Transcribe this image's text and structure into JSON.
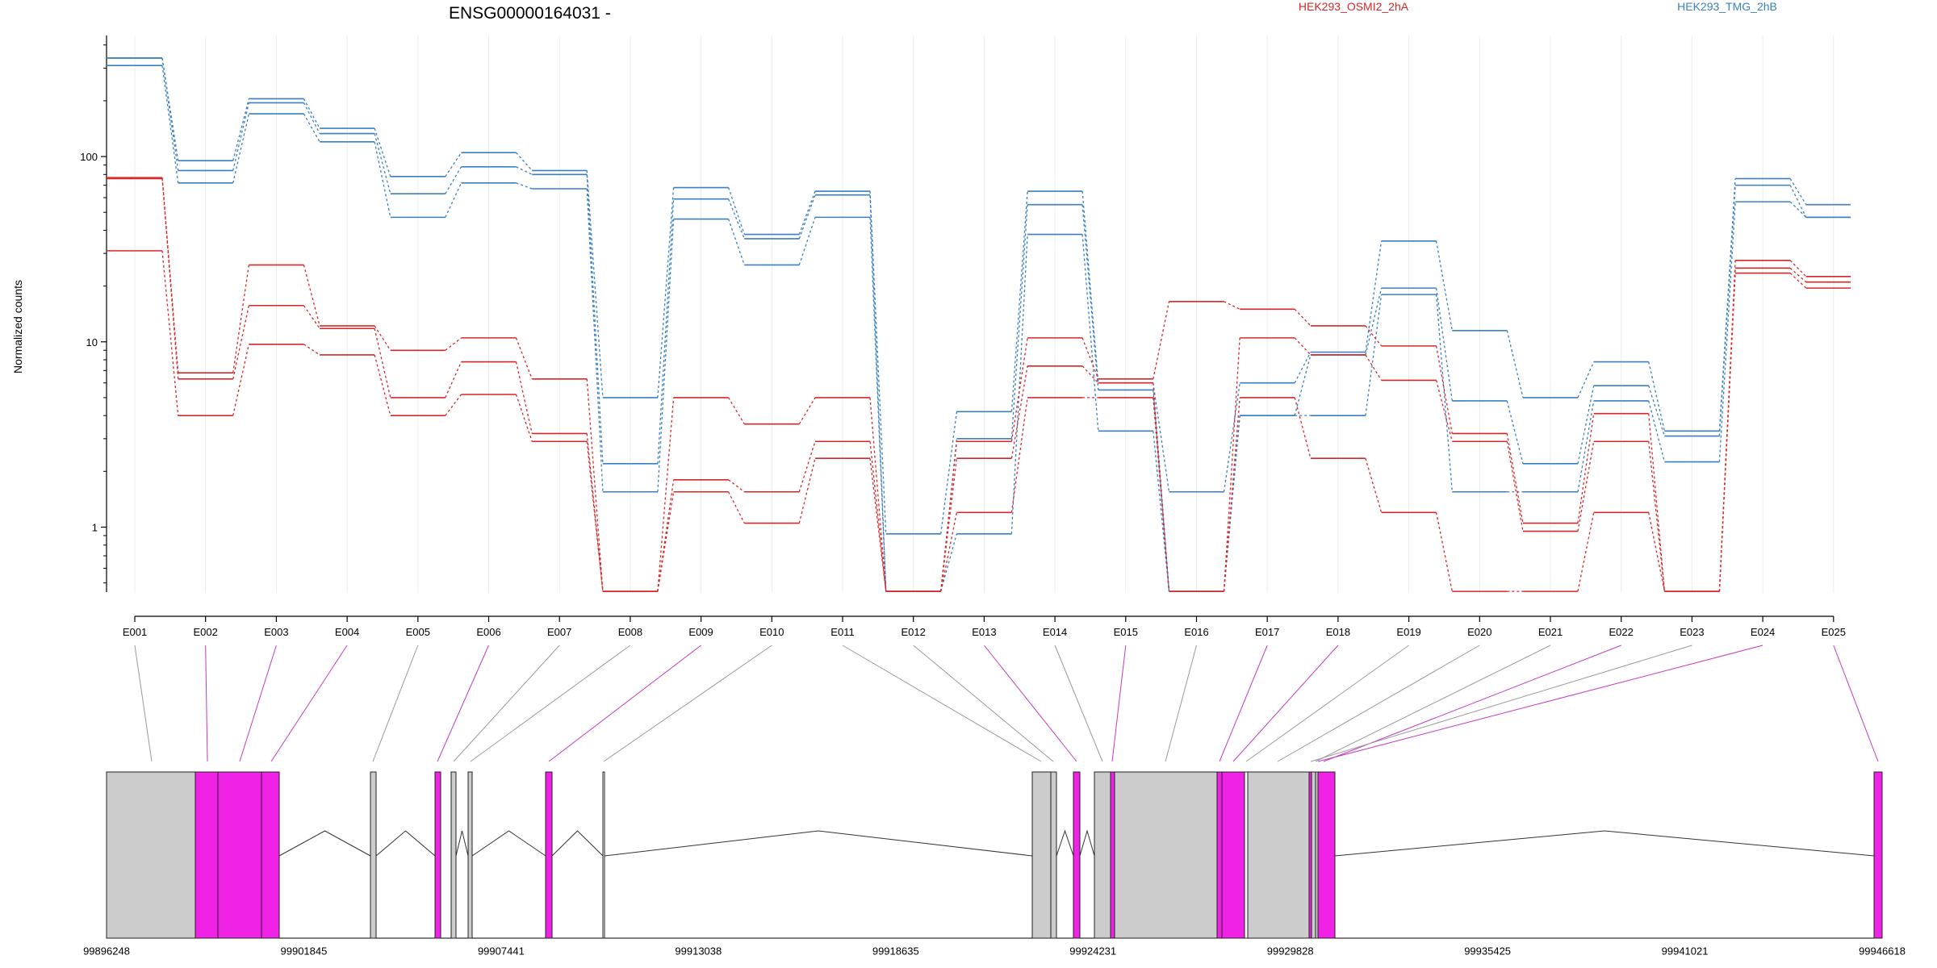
{
  "chart_data": {
    "type": "line",
    "title": "ENSG00000164031 -",
    "ylabel": "Normalized counts",
    "xlabel": "",
    "y_scale": "log",
    "ylim": [
      0.42,
      450
    ],
    "y_ticks": [
      "100",
      "10",
      "1"
    ],
    "y_tick_values": [
      100,
      10,
      1
    ],
    "grid": "vertical-light",
    "legend": [
      {
        "label": "HEK293_OSMI2_2hA",
        "color": "#d62728",
        "placement": "top-center-right"
      },
      {
        "label": "HEK293_TMG_2hB",
        "color": "#3a7fc0",
        "placement": "top-right"
      }
    ],
    "categories": [
      "E001",
      "E002",
      "E003",
      "E004",
      "E005",
      "E006",
      "E007",
      "E008",
      "E009",
      "E010",
      "E011",
      "E012",
      "E013",
      "E014",
      "E015",
      "E016",
      "E017",
      "E018",
      "E019",
      "E020",
      "E021",
      "E022",
      "E023",
      "E024",
      "E025"
    ],
    "series": [
      {
        "group": "HEK293_TMG_2hB",
        "color": "#3a7fc0",
        "values": [
          340,
          95,
          205,
          142,
          78,
          105,
          84,
          5.0,
          68,
          38,
          65,
          0.92,
          4.2,
          65,
          6.0,
          1.55,
          6.0,
          8.8,
          35,
          11.5,
          5.0,
          7.8,
          3.3,
          76,
          55
        ]
      },
      {
        "group": "HEK293_TMG_2hB",
        "color": "#3a7fc0",
        "values": [
          340,
          84,
          195,
          133,
          63,
          88,
          80,
          2.2,
          59,
          36,
          62,
          0.45,
          3.0,
          55,
          5.5,
          0.45,
          4.0,
          8.5,
          19.5,
          4.8,
          2.2,
          5.8,
          3.1,
          70,
          47
        ]
      },
      {
        "group": "HEK293_TMG_2hB",
        "color": "#3a7fc0",
        "values": [
          310,
          72,
          170,
          120,
          47,
          72,
          67,
          1.55,
          46,
          26,
          47,
          0.45,
          0.92,
          38,
          3.3,
          0.45,
          4.0,
          4.0,
          18,
          1.55,
          1.55,
          4.8,
          2.25,
          57,
          47
        ]
      },
      {
        "group": "HEK293_OSMI2_2hA",
        "color": "#d62728",
        "values": [
          77,
          6.8,
          26,
          12.2,
          9.0,
          10.5,
          6.3,
          0.45,
          5.0,
          3.6,
          5.0,
          0.45,
          2.9,
          10.5,
          6.3,
          16.5,
          15,
          12.2,
          9.5,
          3.2,
          1.05,
          4.1,
          0.45,
          27.5,
          22.5
        ]
      },
      {
        "group": "HEK293_OSMI2_2hA",
        "color": "#d62728",
        "values": [
          76,
          6.3,
          15.7,
          11.8,
          5.0,
          7.8,
          3.2,
          0.45,
          1.8,
          1.55,
          2.9,
          0.45,
          2.35,
          7.4,
          6.0,
          0.45,
          10.5,
          8.5,
          6.2,
          2.9,
          0.95,
          2.9,
          0.45,
          25,
          21
        ]
      },
      {
        "group": "HEK293_OSMI2_2hA",
        "color": "#d62728",
        "values": [
          31,
          4.0,
          9.7,
          8.5,
          4.0,
          5.2,
          2.9,
          0.45,
          1.55,
          1.05,
          2.35,
          0.45,
          1.2,
          5.0,
          5.0,
          0.45,
          5.0,
          2.35,
          1.2,
          0.45,
          0.45,
          1.2,
          0.45,
          23.5,
          19.5
        ]
      }
    ],
    "gene_model": {
      "coordinate_labels": [
        "99896248",
        "99901845",
        "99907441",
        "99913038",
        "99918635",
        "99924231",
        "99929828",
        "99935425",
        "99941021",
        "99946618"
      ],
      "exon_fill": {
        "non_significant": "#cccccc",
        "significant": "#f022e6"
      },
      "exon_significant": [
        false,
        true,
        true,
        true,
        false,
        true,
        false,
        false,
        true,
        false,
        false,
        false,
        true,
        false,
        true,
        false,
        true,
        true,
        false,
        false,
        false,
        true,
        false,
        true,
        true
      ]
    }
  }
}
